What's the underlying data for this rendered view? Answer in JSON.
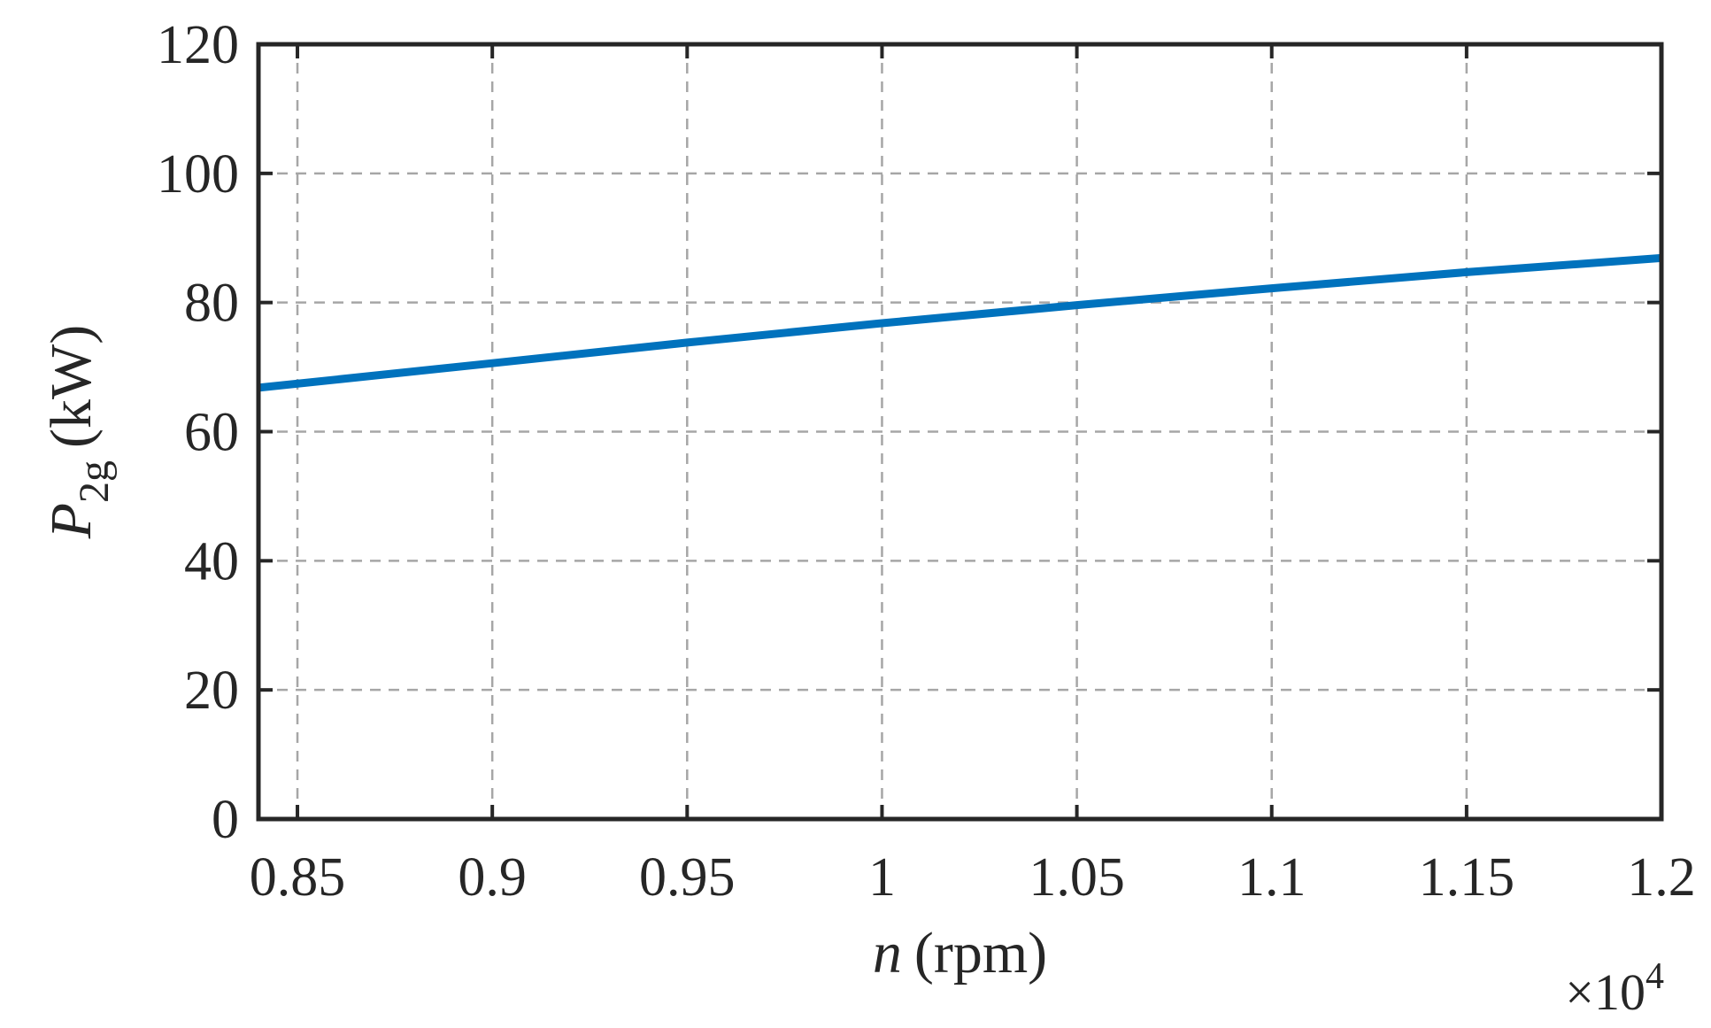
{
  "chart_data": {
    "type": "line",
    "title": "",
    "xlabel": {
      "var": "n",
      "unit": "(rpm)"
    },
    "ylabel": {
      "var": "P",
      "subscript": "2g",
      "unit": "(kW)"
    },
    "x_multiplier": {
      "prefix": "×10",
      "power": "4"
    },
    "xlim": [
      0.84,
      1.2
    ],
    "ylim": [
      0,
      120
    ],
    "xticks": [
      0.85,
      0.9,
      0.95,
      1.0,
      1.05,
      1.1,
      1.15,
      1.2
    ],
    "xtick_labels": [
      "0.85",
      "0.9",
      "0.95",
      "1",
      "1.05",
      "1.1",
      "1.15",
      "1.2"
    ],
    "yticks": [
      0,
      20,
      40,
      60,
      80,
      100,
      120
    ],
    "ytick_labels": [
      "0",
      "20",
      "40",
      "60",
      "80",
      "100",
      "120"
    ],
    "grid": true,
    "line_color": "#0072BD",
    "series": [
      {
        "x": [
          0.84,
          0.9,
          0.95,
          1.0,
          1.05,
          1.1,
          1.15,
          1.2
        ],
        "y": [
          66.8,
          70.6,
          73.8,
          76.8,
          79.6,
          82.2,
          84.7,
          86.9
        ]
      }
    ]
  }
}
